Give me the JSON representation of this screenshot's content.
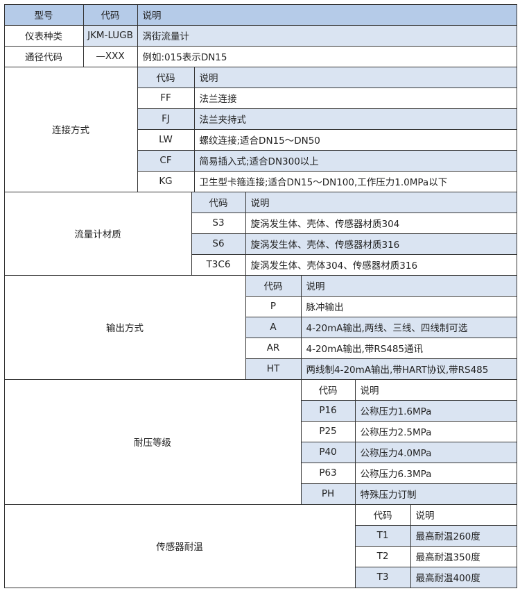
{
  "colors": {
    "header": "#b5cbe8",
    "shaded": "#dae4f2",
    "border": "#333333"
  },
  "top": {
    "header": [
      "型号",
      "代码",
      "说明"
    ],
    "rows": [
      [
        "仪表种类",
        "JKM-LUGB",
        "涡街流量计"
      ],
      [
        "通径代码",
        "—XXX",
        "例如:015表示DN15"
      ]
    ]
  },
  "sections": [
    {
      "label": "连接方式",
      "header": [
        "代码",
        "说明"
      ],
      "rows": [
        [
          "FF",
          "法兰连接"
        ],
        [
          "FJ",
          "法兰夹持式"
        ],
        [
          "LW",
          "螺纹连接;适合DN15～DN50"
        ],
        [
          "CF",
          "简易插入式;适合DN300以上"
        ],
        [
          "KG",
          "卫生型卡箍连接;适合DN15～DN100,工作压力1.0MPa以下"
        ]
      ]
    },
    {
      "label": "流量计材质",
      "header": [
        "代码",
        "说明"
      ],
      "rows": [
        [
          "S3",
          "旋涡发生体、壳体、传感器材质304"
        ],
        [
          "S6",
          "旋涡发生体、壳体、传感器材质316"
        ],
        [
          "T3C6",
          "旋涡发生体、壳体304、传感器材质316"
        ]
      ]
    },
    {
      "label": "输出方式",
      "header": [
        "代码",
        "说明"
      ],
      "rows": [
        [
          "P",
          "脉冲输出"
        ],
        [
          "A",
          "4-20mA输出,两线、三线、四线制可选"
        ],
        [
          "AR",
          "4-20mA输出,带RS485通讯"
        ],
        [
          "HT",
          "两线制4-20mA输出,带HART协议,带RS485"
        ]
      ]
    },
    {
      "label": "耐压等级",
      "header": [
        "代码",
        "说明"
      ],
      "rows": [
        [
          "P16",
          "公称压力1.6MPa"
        ],
        [
          "P25",
          "公称压力2.5MPa"
        ],
        [
          "P40",
          "公称压力4.0MPa"
        ],
        [
          "P63",
          "公称压力6.3MPa"
        ],
        [
          "PH",
          "特殊压力订制"
        ]
      ]
    },
    {
      "label": "传感器耐温",
      "header": [
        "代码",
        "说明"
      ],
      "rows": [
        [
          "T1",
          "最高耐温260度"
        ],
        [
          "T2",
          "最高耐温350度"
        ],
        [
          "T3",
          "最高耐温400度"
        ]
      ]
    }
  ]
}
